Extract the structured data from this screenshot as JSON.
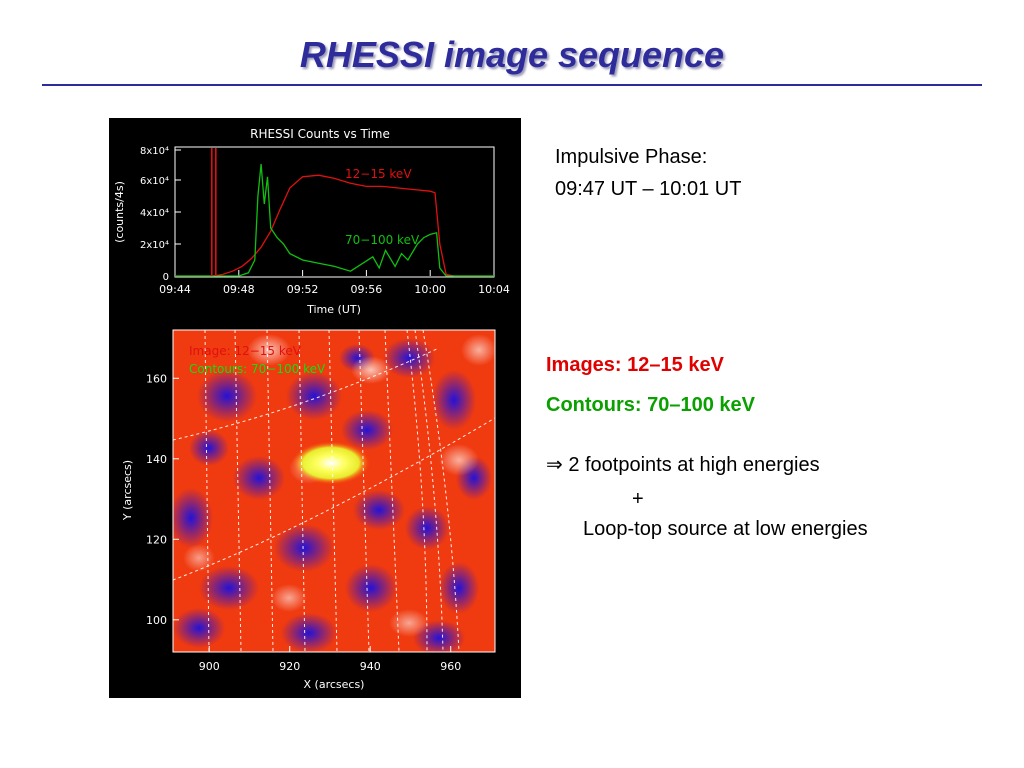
{
  "slide": {
    "title": "RHESSI image sequence",
    "impulsive_phase_label": "Impulsive Phase:",
    "impulsive_phase_time": "09:47 UT – 10:01 UT",
    "images_label": "Images: 12–15 keV",
    "contours_label": "Contours: 70–100 keV",
    "conclusion_line1": "⇒ 2 footpoints at high energies",
    "conclusion_plus": "+",
    "conclusion_line2": "Loop-top source at low energies"
  },
  "colors": {
    "title": "#2e2b9a",
    "images_text": "#e00000",
    "contours_text": "#0aa000",
    "curve_low": "#e01010",
    "curve_high": "#10c010"
  },
  "chart_data": [
    {
      "type": "line",
      "title": "RHESSI Counts vs Time",
      "xlabel": "Time (UT)",
      "ylabel": "(counts/4s)",
      "x_ticks": [
        "09:44",
        "09:48",
        "09:52",
        "09:56",
        "10:00",
        "10:04"
      ],
      "y_ticks": [
        "0",
        "2x10⁴",
        "4x10⁴",
        "6x10⁴",
        "8x10⁴"
      ],
      "xlim_minutes_after_0944": [
        0,
        20
      ],
      "ylim": [
        0,
        80000
      ],
      "series": [
        {
          "name": "12−15 keV",
          "color": "#e01010",
          "x": [
            0,
            2.4,
            3.0,
            3.6,
            4.2,
            4.8,
            5.4,
            6.0,
            6.6,
            7.2,
            8.0,
            9.0,
            10.0,
            11.0,
            12.0,
            13.0,
            14.0,
            15.0,
            16.0,
            16.3,
            16.6,
            17.0,
            17.5,
            18.0,
            19.0,
            20.0
          ],
          "y": [
            0,
            0,
            1000,
            3000,
            6000,
            11000,
            18000,
            28000,
            42000,
            55000,
            62000,
            63000,
            61000,
            58000,
            56000,
            56000,
            55000,
            54000,
            53000,
            52000,
            20000,
            1000,
            0,
            0,
            0,
            0
          ]
        },
        {
          "name": "70−100 keV",
          "color": "#10c010",
          "x": [
            0,
            4.0,
            4.6,
            5.0,
            5.2,
            5.4,
            5.6,
            5.8,
            6.0,
            6.4,
            6.8,
            7.2,
            8.0,
            9.0,
            10.0,
            11.0,
            12.4,
            12.8,
            13.2,
            13.8,
            14.2,
            14.6,
            15.2,
            15.6,
            16.0,
            16.4,
            16.6,
            17.0,
            18.0,
            20.0
          ],
          "y": [
            0,
            0,
            2000,
            10000,
            50000,
            70000,
            45000,
            62000,
            30000,
            24000,
            20000,
            14000,
            10000,
            8000,
            6000,
            3000,
            12000,
            5000,
            16000,
            6000,
            14000,
            10000,
            20000,
            24000,
            26000,
            27000,
            5000,
            0,
            0,
            0
          ]
        }
      ]
    },
    {
      "type": "heatmap",
      "xlabel": "X (arcsecs)",
      "ylabel": "Y (arcsecs)",
      "x_ticks": [
        "900",
        "920",
        "940",
        "960"
      ],
      "y_ticks": [
        "100",
        "120",
        "140",
        "160"
      ],
      "xlim": [
        891,
        971
      ],
      "ylim": [
        92,
        172
      ],
      "legend": [
        "Image: 12−15 keV",
        "Contours: 70−100 keV"
      ]
    }
  ]
}
